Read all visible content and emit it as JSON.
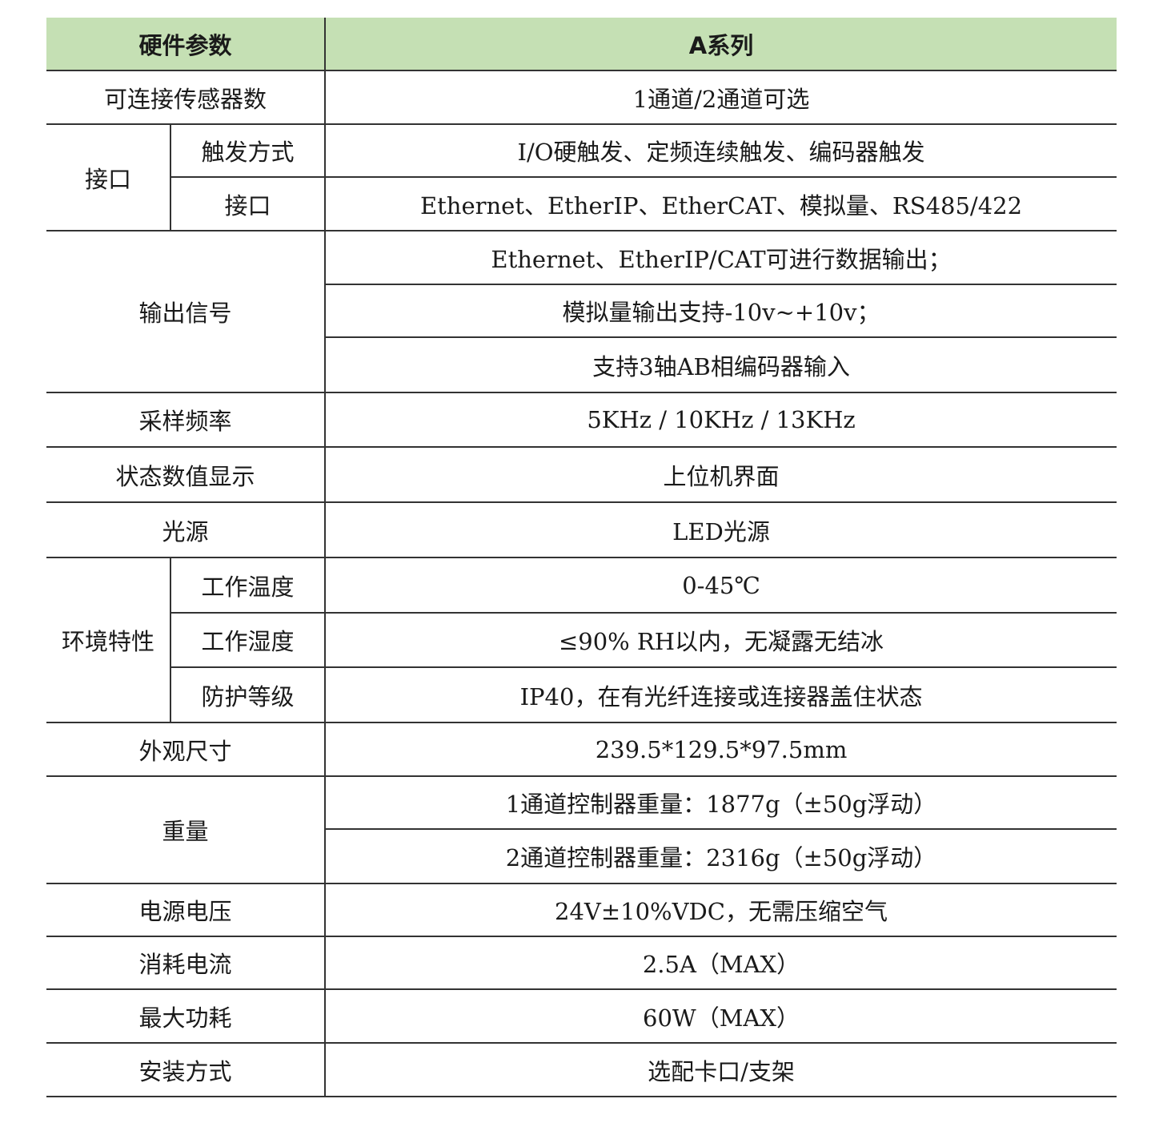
{
  "header": {
    "param": "硬件参数",
    "series": "A系列"
  },
  "rows": {
    "sensors": {
      "label": "可连接传感器数",
      "value": "1通道/2通道可选"
    },
    "interface": {
      "label": "接口",
      "trigger": {
        "label": "触发方式",
        "value": "I/O硬触发、定频连续触发、编码器触发"
      },
      "ports": {
        "label": "接口",
        "value": "Ethernet、EtherIP、EtherCAT、模拟量、RS485/422"
      }
    },
    "output": {
      "label": "输出信号",
      "values": [
        "Ethernet、EtherIP/CAT可进行数据输出；",
        "模拟量输出支持-10v~+10v；",
        "支持3轴AB相编码器输入"
      ]
    },
    "sampling": {
      "label": "采样频率",
      "value": "5KHz / 10KHz / 13KHz"
    },
    "status": {
      "label": "状态数值显示",
      "value": "上位机界面"
    },
    "light": {
      "label": "光源",
      "value": "LED光源"
    },
    "env": {
      "label": "环境特性",
      "temp": {
        "label": "工作温度",
        "value": "0-45℃"
      },
      "humidity": {
        "label": "工作湿度",
        "value": "≤90% RH以内，无凝露无结冰"
      },
      "protection": {
        "label": "防护等级",
        "value": "IP40，在有光纤连接或连接器盖住状态"
      }
    },
    "size": {
      "label": "外观尺寸",
      "value": "239.5*129.5*97.5mm"
    },
    "weight": {
      "label": "重量",
      "values": [
        "1通道控制器重量：1877g（±50g浮动）",
        "2通道控制器重量：2316g（±50g浮动）"
      ]
    },
    "voltage": {
      "label": "电源电压",
      "value": "24V±10%VDC，无需压缩空气"
    },
    "current": {
      "label": "消耗电流",
      "value": "2.5A（MAX）"
    },
    "power": {
      "label": "最大功耗",
      "value": "60W（MAX）"
    },
    "mount": {
      "label": "安装方式",
      "value": "选配卡口/支架"
    }
  },
  "colors": {
    "header_bg": "#c5e0b4",
    "lines": "#333333"
  }
}
